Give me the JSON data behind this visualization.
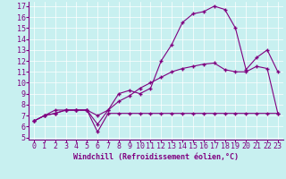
{
  "xlabel": "Windchill (Refroidissement éolien,°C)",
  "bg_color": "#c8f0f0",
  "line_color": "#800080",
  "xlim": [
    -0.5,
    23.5
  ],
  "ylim": [
    4.8,
    17.4
  ],
  "xticks": [
    0,
    1,
    2,
    3,
    4,
    5,
    6,
    7,
    8,
    9,
    10,
    11,
    12,
    13,
    14,
    15,
    16,
    17,
    18,
    19,
    20,
    21,
    22,
    23
  ],
  "yticks": [
    5,
    6,
    7,
    8,
    9,
    10,
    11,
    12,
    13,
    14,
    15,
    16,
    17
  ],
  "curve1_x": [
    0,
    1,
    2,
    3,
    4,
    5,
    6,
    7,
    8,
    9,
    10,
    11,
    12,
    13,
    14,
    15,
    16,
    17,
    18,
    19,
    20,
    21,
    22,
    23
  ],
  "curve1_y": [
    6.5,
    7.0,
    7.5,
    7.5,
    7.5,
    7.5,
    6.2,
    7.5,
    9.0,
    9.3,
    9.0,
    9.5,
    12.0,
    13.5,
    15.5,
    16.3,
    16.5,
    17.0,
    16.7,
    15.0,
    11.2,
    12.3,
    13.0,
    11.0
  ],
  "curve2_x": [
    0,
    1,
    2,
    3,
    4,
    5,
    6,
    7,
    8,
    9,
    10,
    11,
    12,
    13,
    14,
    15,
    16,
    17,
    18,
    19,
    20,
    21,
    22,
    23
  ],
  "curve2_y": [
    6.5,
    7.0,
    7.2,
    7.5,
    7.5,
    7.5,
    7.0,
    7.5,
    8.3,
    8.8,
    9.5,
    10.0,
    10.5,
    11.0,
    11.3,
    11.5,
    11.7,
    11.8,
    11.2,
    11.0,
    11.0,
    11.5,
    11.3,
    7.2
  ],
  "curve3_x": [
    0,
    1,
    2,
    3,
    4,
    5,
    6,
    7,
    8,
    9,
    10,
    11,
    12,
    13,
    14,
    15,
    16,
    17,
    18,
    19,
    20,
    21,
    22,
    23
  ],
  "curve3_y": [
    6.5,
    7.0,
    7.2,
    7.5,
    7.5,
    7.5,
    5.5,
    7.2,
    7.2,
    7.2,
    7.2,
    7.2,
    7.2,
    7.2,
    7.2,
    7.2,
    7.2,
    7.2,
    7.2,
    7.2,
    7.2,
    7.2,
    7.2,
    7.2
  ],
  "xlabel_fontsize": 6,
  "tick_fontsize": 6
}
